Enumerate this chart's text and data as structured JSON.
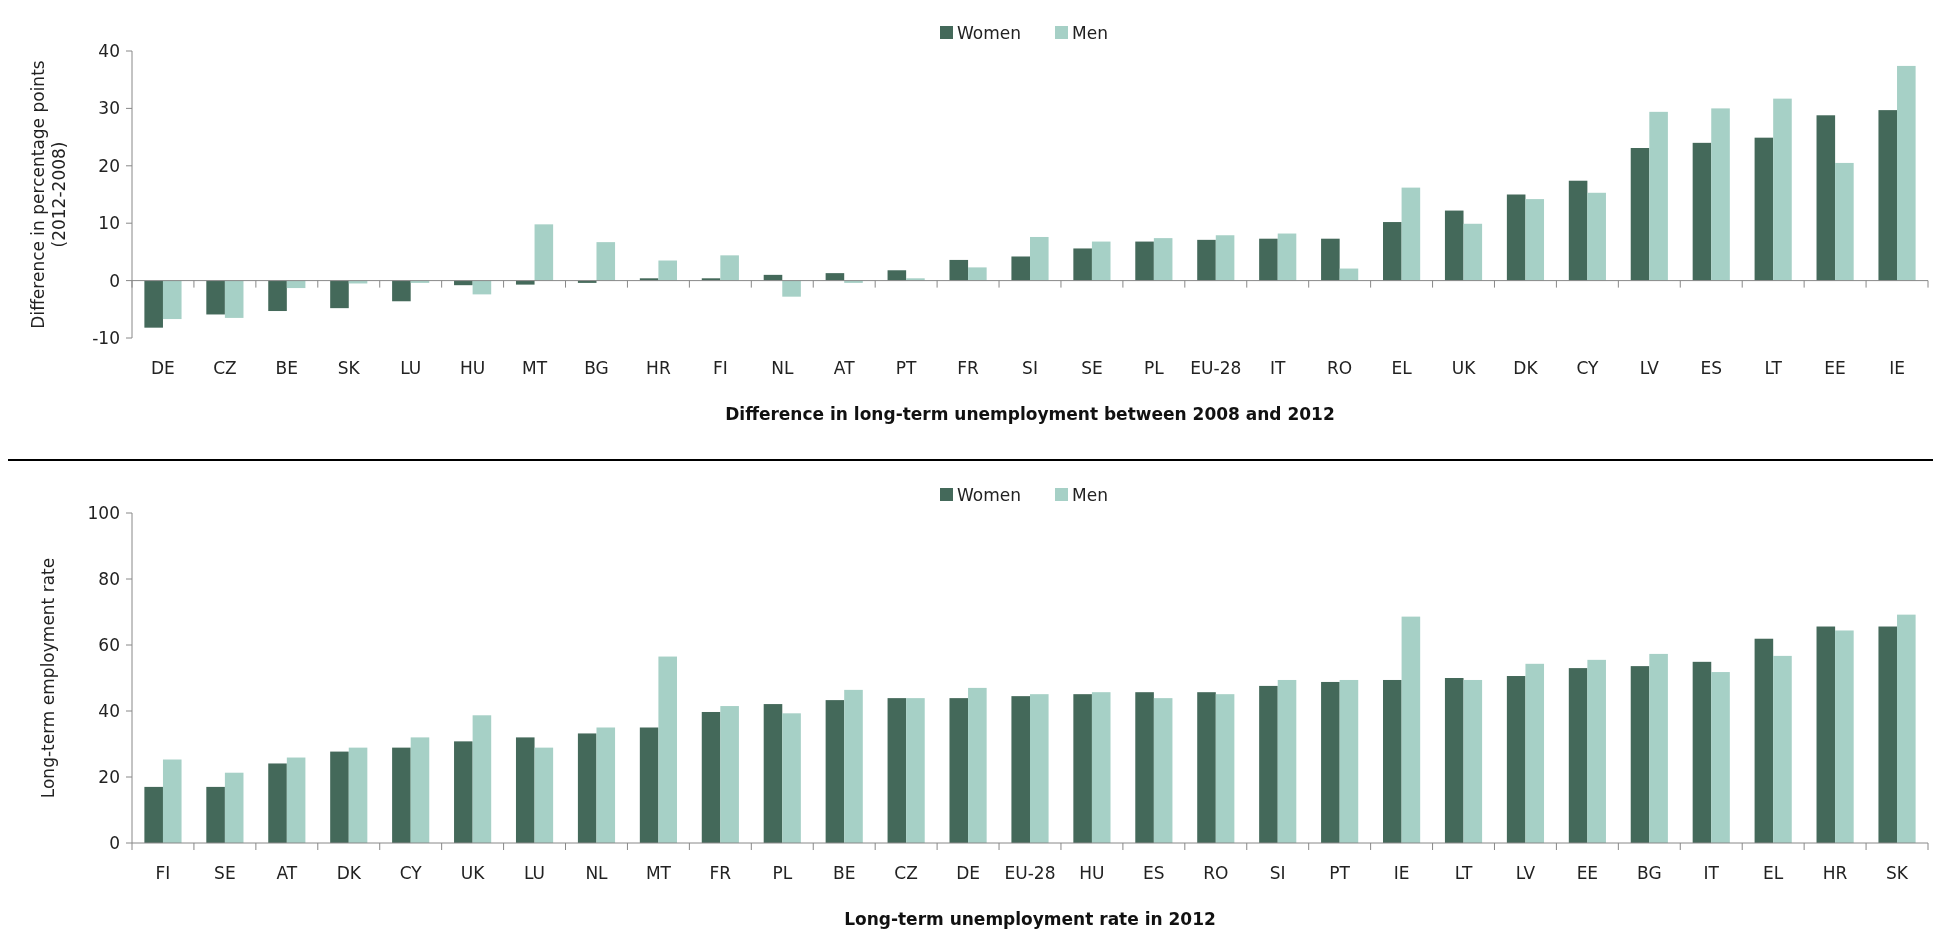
{
  "chart_data": [
    {
      "type": "bar",
      "xlabel": "Difference in long-term unemployment between 2008 and 2012",
      "ylabel": "Difference in percentage points\n(2012-2008)",
      "categories": [
        "DE",
        "CZ",
        "BE",
        "SK",
        "LU",
        "HU",
        "MT",
        "BG",
        "HR",
        "FI",
        "NL",
        "AT",
        "PT",
        "FR",
        "SI",
        "SE",
        "PL",
        "EU-28",
        "IT",
        "RO",
        "EL",
        "UK",
        "DK",
        "CY",
        "LV",
        "ES",
        "LT",
        "EE",
        "IE"
      ],
      "series": [
        {
          "name": "Women",
          "color": "#44695a",
          "values": [
            -8.2,
            -5.9,
            -5.3,
            -4.8,
            -3.6,
            -0.8,
            -0.7,
            -0.4,
            0.4,
            0.4,
            1.0,
            1.3,
            1.8,
            3.6,
            4.2,
            5.6,
            6.8,
            7.1,
            7.3,
            7.3,
            10.2,
            12.2,
            15.0,
            17.4,
            23.1,
            24.0,
            24.9,
            28.8,
            29.7
          ]
        },
        {
          "name": "Men",
          "color": "#a6d0c6",
          "values": [
            -6.7,
            -6.5,
            -1.3,
            -0.5,
            -0.4,
            -2.4,
            9.8,
            6.7,
            3.5,
            4.4,
            -2.8,
            -0.4,
            0.4,
            2.3,
            7.6,
            6.8,
            7.4,
            7.9,
            8.2,
            2.1,
            16.2,
            9.9,
            14.2,
            15.3,
            29.4,
            30.0,
            31.7,
            20.5,
            37.4
          ]
        }
      ],
      "ylim": [
        -10,
        40
      ],
      "yticks": [
        -10,
        0,
        10,
        20,
        30,
        40
      ],
      "legend": "top"
    },
    {
      "type": "bar",
      "xlabel": "Long-term unemployment rate in 2012",
      "ylabel": "Long-term employment rate",
      "categories": [
        "FI",
        "SE",
        "AT",
        "DK",
        "CY",
        "UK",
        "LU",
        "NL",
        "MT",
        "FR",
        "PL",
        "BE",
        "CZ",
        "DE",
        "EU-28",
        "HU",
        "ES",
        "RO",
        "SI",
        "PT",
        "IE",
        "LT",
        "LV",
        "EE",
        "BG",
        "IT",
        "EL",
        "HR",
        "SK"
      ],
      "series": [
        {
          "name": "Women",
          "color": "#44695a",
          "values": [
            17.0,
            17.0,
            24.1,
            27.7,
            28.9,
            30.8,
            32.0,
            33.2,
            35.0,
            39.7,
            42.1,
            43.3,
            43.9,
            43.9,
            44.5,
            45.1,
            45.7,
            45.7,
            47.6,
            48.8,
            49.4,
            50.0,
            50.6,
            53.0,
            53.6,
            54.9,
            61.9,
            65.6,
            65.6
          ]
        },
        {
          "name": "Men",
          "color": "#a6d0c6",
          "values": [
            25.3,
            21.3,
            25.9,
            28.9,
            32.0,
            38.7,
            28.9,
            35.0,
            56.5,
            41.5,
            39.3,
            46.4,
            43.9,
            47.0,
            45.1,
            45.7,
            43.9,
            45.1,
            49.4,
            49.4,
            68.6,
            49.4,
            54.3,
            55.5,
            57.3,
            51.8,
            56.7,
            64.4,
            69.2
          ]
        }
      ],
      "ylim": [
        0,
        100
      ],
      "yticks": [
        0,
        20,
        40,
        60,
        80,
        100
      ],
      "legend": "top"
    }
  ]
}
